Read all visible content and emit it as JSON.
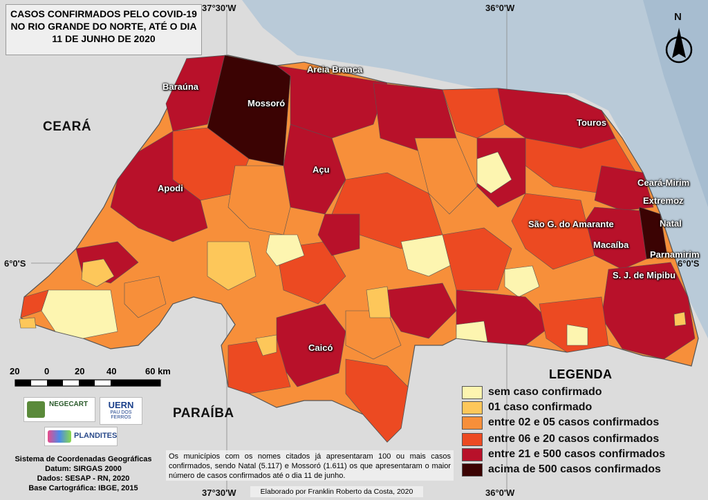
{
  "title": {
    "line1": "CASOS CONFIRMADOS PELO COVID-19",
    "line2": "NO RIO GRANDE DO NORTE, ATÉ O DIA",
    "line3": "11 DE JUNHO DE 2020"
  },
  "coords": {
    "top_left": "37°30'W",
    "top_right": "36°0'W",
    "bottom_left": "37°30'W",
    "bottom_right": "36°0'W",
    "left_lat": "6°0'S",
    "right_lat": "6°0'S"
  },
  "north_label": "N",
  "neighbors": {
    "ceara": "CEARÁ",
    "paraiba": "PARAÍBA"
  },
  "cities": {
    "barauna": "Baraúna",
    "mossoro": "Mossoró",
    "areia_branca": "Areia Branca",
    "acu": "Açu",
    "apodi": "Apodi",
    "touros": "Touros",
    "ceara_mirim": "Ceará-Mirim",
    "extremoz": "Extremoz",
    "natal": "Natal",
    "sao_goncalo": "São G. do Amarante",
    "macaiba": "Macaíba",
    "parnamirim": "Parnamirim",
    "sjmipibu": "S. J. de Mipibu",
    "caico": "Caicó"
  },
  "scale": {
    "t0": "20",
    "t1": "0",
    "t2": "20",
    "t3": "40",
    "t4": "60 km"
  },
  "logos": {
    "negecart": "NEGECART",
    "uern": "UERN",
    "uern_sub": "PAU DOS FERROS",
    "plandites": "PLANDITES"
  },
  "legend": {
    "title": "LEGENDA",
    "items": [
      {
        "label": "sem caso confirmado",
        "color": "#fdf5b0"
      },
      {
        "label": "01 caso confirmado",
        "color": "#fdc75a"
      },
      {
        "label": "entre 02 e 05 casos confirmados",
        "color": "#f78f3a"
      },
      {
        "label": "entre 06 e 20 casos confirmados",
        "color": "#ec4a22"
      },
      {
        "label": "entre 21 e 500 casos confirmados",
        "color": "#b8112a"
      },
      {
        "label": "acima de 500 casos confirmados",
        "color": "#3b0303"
      }
    ]
  },
  "footer": {
    "line1": "Sistema de Coordenadas Geográficas",
    "line2": "Datum: SIRGAS 2000",
    "line3": "Dados: SESAP - RN, 2020",
    "line4": "Base Cartográfica: IBGE, 2015"
  },
  "note": "Os municípios com os nomes citados já apresentaram 100 ou mais casos confirmados, sendo Natal (5.117) e Mossoró (1.611) os que apresentaram o maior número de casos confirmados até o dia 11 de junho.",
  "credit": "Elaborado por Franklin Roberto da Costa, 2020"
}
